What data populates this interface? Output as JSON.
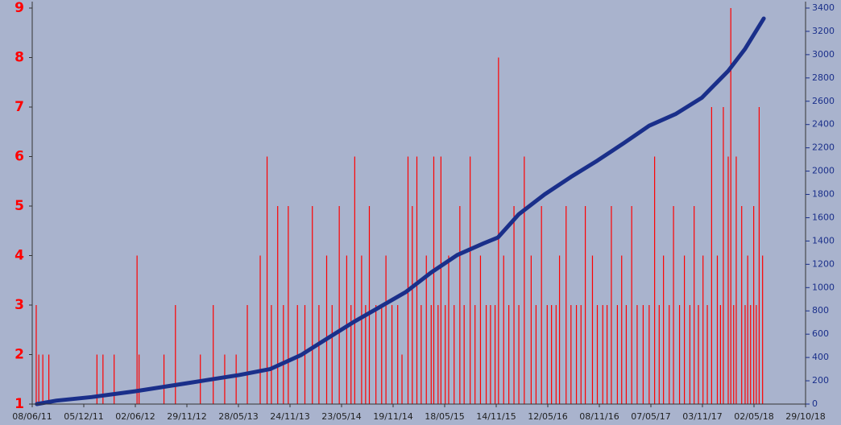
{
  "chart_data": {
    "type": "combo",
    "xlim": [
      "2011-06-08",
      "2018-10-29"
    ],
    "xticks": [
      {
        "value": "2011-06-08",
        "label": "08/06/11"
      },
      {
        "value": "2011-12-05",
        "label": "05/12/11"
      },
      {
        "value": "2012-06-02",
        "label": "02/06/12"
      },
      {
        "value": "2012-11-29",
        "label": "29/11/12"
      },
      {
        "value": "2013-05-28",
        "label": "28/05/13"
      },
      {
        "value": "2013-11-24",
        "label": "24/11/13"
      },
      {
        "value": "2014-05-23",
        "label": "23/05/14"
      },
      {
        "value": "2014-11-19",
        "label": "19/11/14"
      },
      {
        "value": "2015-05-18",
        "label": "18/05/15"
      },
      {
        "value": "2015-11-14",
        "label": "14/11/15"
      },
      {
        "value": "2016-05-12",
        "label": "12/05/16"
      },
      {
        "value": "2016-11-08",
        "label": "08/11/16"
      },
      {
        "value": "2017-05-07",
        "label": "07/05/17"
      },
      {
        "value": "2017-11-03",
        "label": "03/11/17"
      },
      {
        "value": "2018-05-02",
        "label": "02/05/18"
      },
      {
        "value": "2018-10-29",
        "label": "29/10/18"
      }
    ],
    "ylim": [
      1,
      9
    ],
    "yticks": [
      1,
      2,
      3,
      4,
      5,
      6,
      7,
      8,
      9
    ],
    "y2lim": [
      0,
      3400
    ],
    "y2ticks": [
      0,
      200,
      400,
      600,
      800,
      1000,
      1200,
      1400,
      1600,
      1800,
      2000,
      2200,
      2400,
      2600,
      2800,
      3000,
      3200,
      3400
    ],
    "series": [
      {
        "type": "bar",
        "color": "#ff0000",
        "x": [
          "2011-06-22",
          "2011-07-01",
          "2011-07-15",
          "2011-08-05",
          "2012-01-20",
          "2012-02-10",
          "2012-03-20",
          "2012-06-08",
          "2012-06-15",
          "2012-09-10",
          "2012-10-20",
          "2013-01-15",
          "2013-03-01",
          "2013-04-10",
          "2013-05-20",
          "2013-06-28",
          "2013-08-12",
          "2013-09-05",
          "2013-09-20",
          "2013-10-12",
          "2013-11-01",
          "2013-11-18",
          "2013-12-20",
          "2014-01-15",
          "2014-02-10",
          "2014-03-05",
          "2014-04-01",
          "2014-04-20",
          "2014-05-15",
          "2014-06-10",
          "2014-06-25",
          "2014-07-08",
          "2014-08-01",
          "2014-08-15",
          "2014-08-28",
          "2014-09-20",
          "2014-10-10",
          "2014-10-25",
          "2014-11-15",
          "2014-12-05",
          "2014-12-20",
          "2015-01-10",
          "2015-01-25",
          "2015-02-10",
          "2015-02-25",
          "2015-03-15",
          "2015-04-01",
          "2015-04-10",
          "2015-04-25",
          "2015-05-05",
          "2015-05-20",
          "2015-06-01",
          "2015-06-20",
          "2015-07-10",
          "2015-07-25",
          "2015-08-15",
          "2015-09-01",
          "2015-09-20",
          "2015-10-10",
          "2015-10-25",
          "2015-11-10",
          "2015-11-22",
          "2015-12-10",
          "2015-12-28",
          "2016-01-15",
          "2016-02-01",
          "2016-02-20",
          "2016-03-15",
          "2016-04-01",
          "2016-04-20",
          "2016-05-10",
          "2016-05-25",
          "2016-06-10",
          "2016-06-22",
          "2016-07-15",
          "2016-08-01",
          "2016-08-20",
          "2016-09-05",
          "2016-09-20",
          "2016-10-15",
          "2016-11-01",
          "2016-11-20",
          "2016-12-05",
          "2016-12-20",
          "2017-01-10",
          "2017-01-25",
          "2017-02-10",
          "2017-03-01",
          "2017-03-20",
          "2017-04-10",
          "2017-05-01",
          "2017-05-20",
          "2017-06-05",
          "2017-06-20",
          "2017-07-10",
          "2017-07-25",
          "2017-08-15",
          "2017-09-01",
          "2017-09-20",
          "2017-10-05",
          "2017-10-20",
          "2017-11-05",
          "2017-11-20",
          "2017-12-05",
          "2017-12-25",
          "2018-01-05",
          "2018-01-15",
          "2018-02-01",
          "2018-02-10",
          "2018-02-20",
          "2018-03-01",
          "2018-03-20",
          "2018-04-01",
          "2018-04-10",
          "2018-04-20",
          "2018-05-01",
          "2018-05-10",
          "2018-05-20",
          "2018-06-01"
        ],
        "values": [
          3,
          2,
          2,
          2,
          2,
          2,
          2,
          4,
          2,
          2,
          3,
          2,
          3,
          2,
          2,
          3,
          4,
          6,
          3,
          5,
          3,
          5,
          3,
          3,
          5,
          3,
          4,
          3,
          5,
          4,
          3,
          6,
          4,
          3,
          5,
          3,
          3,
          4,
          3,
          3,
          2,
          6,
          5,
          6,
          3,
          4,
          3,
          6,
          3,
          6,
          3,
          4,
          3,
          5,
          3,
          6,
          3,
          4,
          3,
          3,
          3,
          8,
          4,
          3,
          5,
          3,
          6,
          4,
          3,
          5,
          3,
          3,
          3,
          4,
          5,
          3,
          3,
          3,
          5,
          4,
          3,
          3,
          3,
          5,
          3,
          4,
          3,
          5,
          3,
          3,
          3,
          6,
          3,
          4,
          3,
          5,
          3,
          4,
          3,
          5,
          3,
          4,
          3,
          7,
          4,
          3,
          7,
          6,
          9,
          3,
          6,
          5,
          3,
          4,
          3,
          5,
          3,
          7,
          4
        ]
      },
      {
        "type": "line",
        "color": "#1a2f8a",
        "axis": "y2",
        "x": [
          "2011-06-24",
          "2011-09-01",
          "2012-01-01",
          "2012-06-01",
          "2012-12-01",
          "2013-06-01",
          "2013-09-15",
          "2014-01-01",
          "2014-04-01",
          "2014-07-01",
          "2014-10-01",
          "2015-01-01",
          "2015-04-01",
          "2015-07-01",
          "2015-10-01",
          "2015-11-20",
          "2016-02-01",
          "2016-05-01",
          "2016-08-01",
          "2016-11-01",
          "2017-02-01",
          "2017-05-01",
          "2017-08-01",
          "2017-11-01",
          "2018-02-01",
          "2018-04-01",
          "2018-06-05"
        ],
        "values": [
          0,
          30,
          60,
          110,
          180,
          250,
          300,
          420,
          560,
          700,
          830,
          960,
          1130,
          1280,
          1380,
          1430,
          1630,
          1800,
          1950,
          2090,
          2240,
          2390,
          2490,
          2630,
          2860,
          3050,
          3310
        ]
      }
    ]
  }
}
